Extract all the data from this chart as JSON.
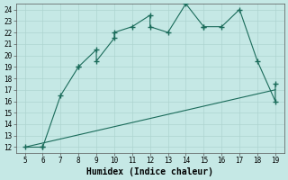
{
  "curve_x": [
    5,
    6,
    6,
    7,
    8,
    8,
    9,
    9,
    10,
    10,
    11,
    12,
    12,
    13,
    14,
    15,
    15,
    16,
    17,
    18,
    19,
    19
  ],
  "curve_y": [
    12,
    12,
    12,
    16.5,
    19,
    19,
    20.5,
    19.5,
    21.5,
    22,
    22.5,
    23.5,
    22.5,
    22,
    24.5,
    22.5,
    22.5,
    22.5,
    24,
    19.5,
    16,
    17.5
  ],
  "line_x": [
    5,
    19
  ],
  "line_y": [
    12,
    17
  ],
  "line_color": "#1a6b5a",
  "curve_color": "#1a6b5a",
  "bg_color": "#c5e8e5",
  "grid_color": "#aed4d0",
  "xlabel": "Humidex (Indice chaleur)",
  "xlim": [
    4.5,
    19.5
  ],
  "ylim": [
    11.5,
    24.5
  ],
  "xticks": [
    5,
    6,
    7,
    8,
    9,
    10,
    11,
    12,
    13,
    14,
    15,
    16,
    17,
    18,
    19
  ],
  "yticks": [
    12,
    13,
    14,
    15,
    16,
    17,
    18,
    19,
    20,
    21,
    22,
    23,
    24
  ],
  "tick_fontsize": 5.5,
  "xlabel_fontsize": 7.0,
  "marker": "+",
  "marker_size": 4,
  "linewidth": 0.8
}
